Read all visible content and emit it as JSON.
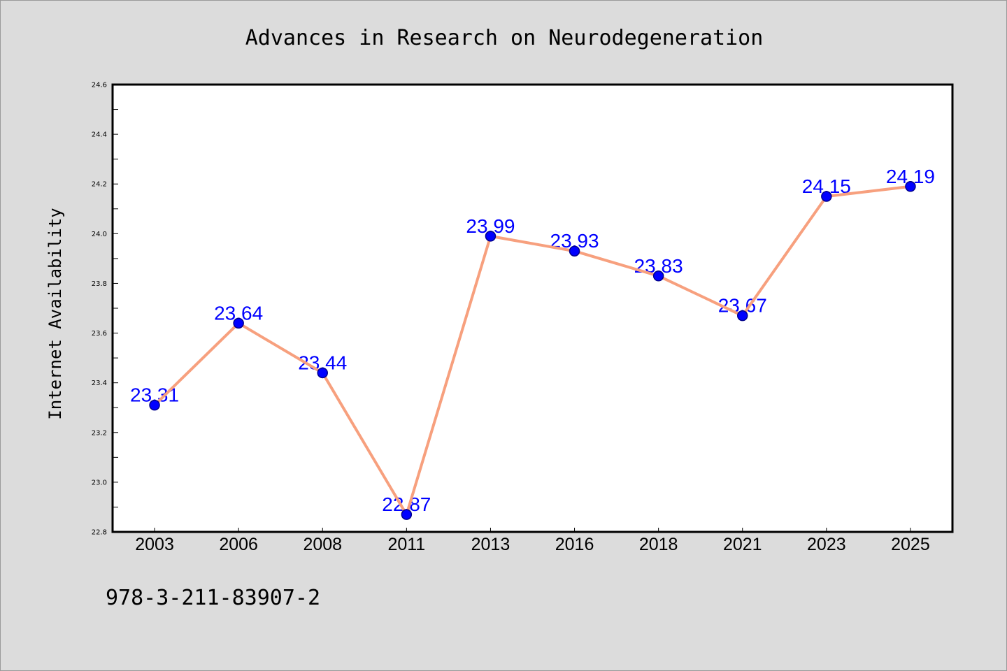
{
  "chart_data": {
    "type": "line",
    "title": "Advances in Research on Neurodegeneration",
    "xlabel": "",
    "ylabel": "Internet Availability",
    "categories": [
      "2003",
      "2006",
      "2008",
      "2011",
      "2013",
      "2016",
      "2018",
      "2021",
      "2023",
      "2025"
    ],
    "series": [
      {
        "values": [
          23.31,
          23.64,
          23.44,
          22.87,
          23.99,
          23.93,
          23.83,
          23.67,
          24.15,
          24.19
        ]
      }
    ],
    "ylim": [
      22.8,
      24.6
    ],
    "ytick_labels": [
      "22.8",
      "23.0",
      "23.2",
      "23.4",
      "23.6",
      "23.8",
      "24.0",
      "24.2",
      "24.4",
      "24.6"
    ],
    "data_labels": true,
    "grid": false
  },
  "annotation": "978-3-211-83907-2",
  "colors": {
    "page_background": "#dcdcdc",
    "plot_background": "#ffffff",
    "axis": "#000000",
    "line": "#f7a07e",
    "marker_fill": "#0000ff",
    "marker_edge": "#00008b",
    "data_label": "#0000ff",
    "text": "#000000"
  }
}
